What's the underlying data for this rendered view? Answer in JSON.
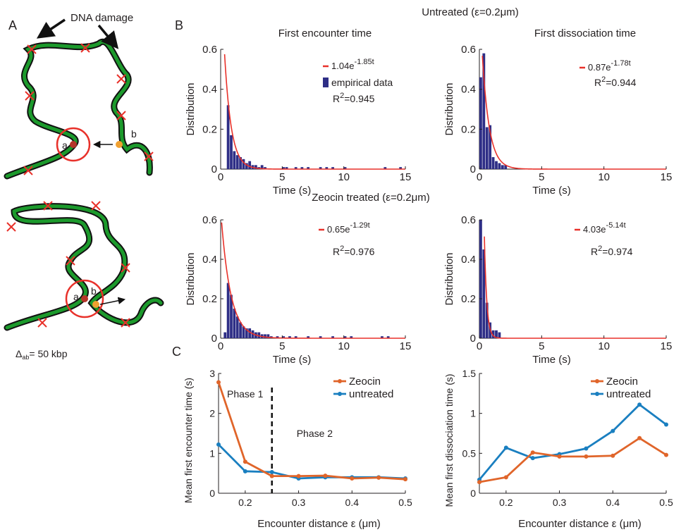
{
  "panel_letters": {
    "a": "A",
    "b": "B",
    "c": "C"
  },
  "section_titles": {
    "untreated": "Untreated (ε=0.2μm)",
    "zeocin": "Zeocin treated (ε=0.2μm)"
  },
  "column_titles": {
    "left": "First encounter time",
    "right": "First dissociation time"
  },
  "schematic": {
    "damage_label": "DNA damage",
    "locus_a": "a",
    "locus_b": "b",
    "distance_label": "Δ",
    "distance_sub": "ab",
    "distance_value": "= 50 kbp"
  },
  "colors": {
    "chromatin": "#1c9a2c",
    "chromatin_outline": "#111111",
    "damage": "#e8312a",
    "fit": "#e8312a",
    "bars": "#2e2e86",
    "zeocin": "#e0652a",
    "untreated": "#1a7fc0",
    "locus_a": "#b5352a",
    "locus_b": "#f0a030"
  },
  "chart_data": [
    {
      "id": "hist_untreated_encounter",
      "type": "bar",
      "xlabel": "Time (s)",
      "ylabel": "Distribution",
      "xlim": [
        0,
        15
      ],
      "ylim": [
        0,
        0.6
      ],
      "xticks": [
        0,
        5,
        10,
        15
      ],
      "yticks": [
        0,
        0.2,
        0.4,
        0.6
      ],
      "bin_width": 0.25,
      "bin_starts": [
        0.5,
        0.75,
        1.0,
        1.25,
        1.5,
        1.75,
        2.0,
        2.25,
        2.5,
        2.75,
        3.0,
        3.25,
        3.5,
        5.0,
        5.25,
        6.0,
        6.5,
        7.0,
        8.0,
        8.5,
        9.0,
        10.0,
        13.25,
        14.5
      ],
      "values": [
        0.32,
        0.17,
        0.09,
        0.07,
        0.06,
        0.05,
        0.03,
        0.04,
        0.02,
        0.02,
        0.01,
        0.02,
        0.01,
        0.01,
        0.01,
        0.01,
        0.01,
        0.01,
        0.01,
        0.01,
        0.01,
        0.01,
        0.01,
        0.01
      ],
      "fit": {
        "a": 1.04,
        "b": 1.85,
        "label_coef": "1.04e",
        "label_exp": "-1.85t"
      },
      "r2": "0.945",
      "legend": {
        "fit": "1.04e",
        "data": "empirical data",
        "position": "top-right"
      }
    },
    {
      "id": "hist_untreated_dissociation",
      "type": "bar",
      "xlabel": "Time (s)",
      "ylabel": "Distribution",
      "xlim": [
        0,
        15
      ],
      "ylim": [
        0,
        0.6
      ],
      "xticks": [
        0,
        5,
        10,
        15
      ],
      "yticks": [
        0,
        0.2,
        0.4,
        0.6
      ],
      "bin_width": 0.25,
      "bin_starts": [
        0.0,
        0.25,
        0.5,
        0.75,
        1.0,
        1.25,
        1.5,
        1.75,
        2.0
      ],
      "values": [
        0.46,
        0.58,
        0.21,
        0.22,
        0.06,
        0.04,
        0.03,
        0.02,
        0.02
      ],
      "fit": {
        "a": 0.87,
        "b": 1.78,
        "label_coef": "0.87e",
        "label_exp": "-1.78t"
      },
      "r2": "0.944"
    },
    {
      "id": "hist_zeocin_encounter",
      "type": "bar",
      "xlabel": "Time (s)",
      "ylabel": "Distribution",
      "xlim": [
        0,
        15
      ],
      "ylim": [
        0,
        0.6
      ],
      "xticks": [
        0,
        5,
        10,
        15
      ],
      "yticks": [
        0,
        0.2,
        0.4,
        0.6
      ],
      "bin_width": 0.25,
      "bin_starts": [
        0.25,
        0.5,
        0.75,
        1.0,
        1.25,
        1.5,
        1.75,
        2.0,
        2.25,
        2.5,
        2.75,
        3.0,
        3.25,
        3.5,
        3.75,
        4.0,
        4.5,
        5.0,
        5.5,
        6.0,
        7.0,
        8.0,
        9.0,
        10.0,
        10.5,
        13.0,
        13.5
      ],
      "values": [
        0.03,
        0.28,
        0.22,
        0.15,
        0.11,
        0.08,
        0.06,
        0.05,
        0.05,
        0.04,
        0.03,
        0.03,
        0.02,
        0.02,
        0.02,
        0.01,
        0.01,
        0.01,
        0.01,
        0.01,
        0.01,
        0.01,
        0.01,
        0.01,
        0.01,
        0.01,
        0.01
      ],
      "fit": {
        "a": 0.65,
        "b": 1.29,
        "label_coef": "0.65e",
        "label_exp": "-1.29t"
      },
      "r2": "0.976"
    },
    {
      "id": "hist_zeocin_dissociation",
      "type": "bar",
      "xlabel": "Time (s)",
      "ylabel": "Distribution",
      "xlim": [
        0,
        15
      ],
      "ylim": [
        0,
        0.6
      ],
      "xticks": [
        0,
        5,
        10,
        15
      ],
      "yticks": [
        0,
        0.2,
        0.4,
        0.6
      ],
      "bin_width": 0.25,
      "bin_starts": [
        0.0,
        0.25,
        0.5,
        0.75,
        1.0,
        1.25,
        1.5
      ],
      "values": [
        0.6,
        0.45,
        0.18,
        0.08,
        0.04,
        0.04,
        0.03
      ],
      "fit": {
        "a": 4.03,
        "b": 5.14,
        "label_coef": "4.03e",
        "label_exp": "-5.14t"
      },
      "r2": "0.974"
    },
    {
      "id": "line_mean_encounter",
      "type": "line",
      "xlabel": "Encounter distance ε (μm)",
      "ylabel": "Mean first encounter time (s)",
      "xlim": [
        0.15,
        0.5
      ],
      "ylim": [
        0,
        3
      ],
      "xticks": [
        0.2,
        0.3,
        0.4,
        0.5
      ],
      "yticks": [
        0,
        1,
        2,
        3
      ],
      "x": [
        0.15,
        0.2,
        0.25,
        0.3,
        0.35,
        0.4,
        0.45,
        0.5
      ],
      "series": [
        {
          "name": "Zeocin",
          "values": [
            2.78,
            0.79,
            0.43,
            0.43,
            0.44,
            0.37,
            0.39,
            0.35
          ]
        },
        {
          "name": "untreated",
          "values": [
            1.22,
            0.55,
            0.53,
            0.37,
            0.4,
            0.4,
            0.4,
            0.37
          ]
        }
      ],
      "phase_line_x": 0.25,
      "annotations": [
        "Phase 1",
        "Phase 2"
      ],
      "legend_position": "top-right"
    },
    {
      "id": "line_mean_dissociation",
      "type": "line",
      "xlabel": "Encounter distance ε (μm)",
      "ylabel": "Mean first dissociation time (s)",
      "xlim": [
        0.15,
        0.5
      ],
      "ylim": [
        0,
        1.5
      ],
      "xticks": [
        0.2,
        0.3,
        0.4,
        0.5
      ],
      "yticks": [
        0,
        0.5,
        1,
        1.5
      ],
      "x": [
        0.15,
        0.2,
        0.25,
        0.3,
        0.35,
        0.4,
        0.45,
        0.5
      ],
      "series": [
        {
          "name": "Zeocin",
          "values": [
            0.14,
            0.2,
            0.51,
            0.46,
            0.46,
            0.47,
            0.69,
            0.48
          ]
        },
        {
          "name": "untreated",
          "values": [
            0.17,
            0.57,
            0.44,
            0.49,
            0.56,
            0.78,
            1.11,
            0.86
          ]
        }
      ],
      "legend_position": "top-right"
    }
  ]
}
